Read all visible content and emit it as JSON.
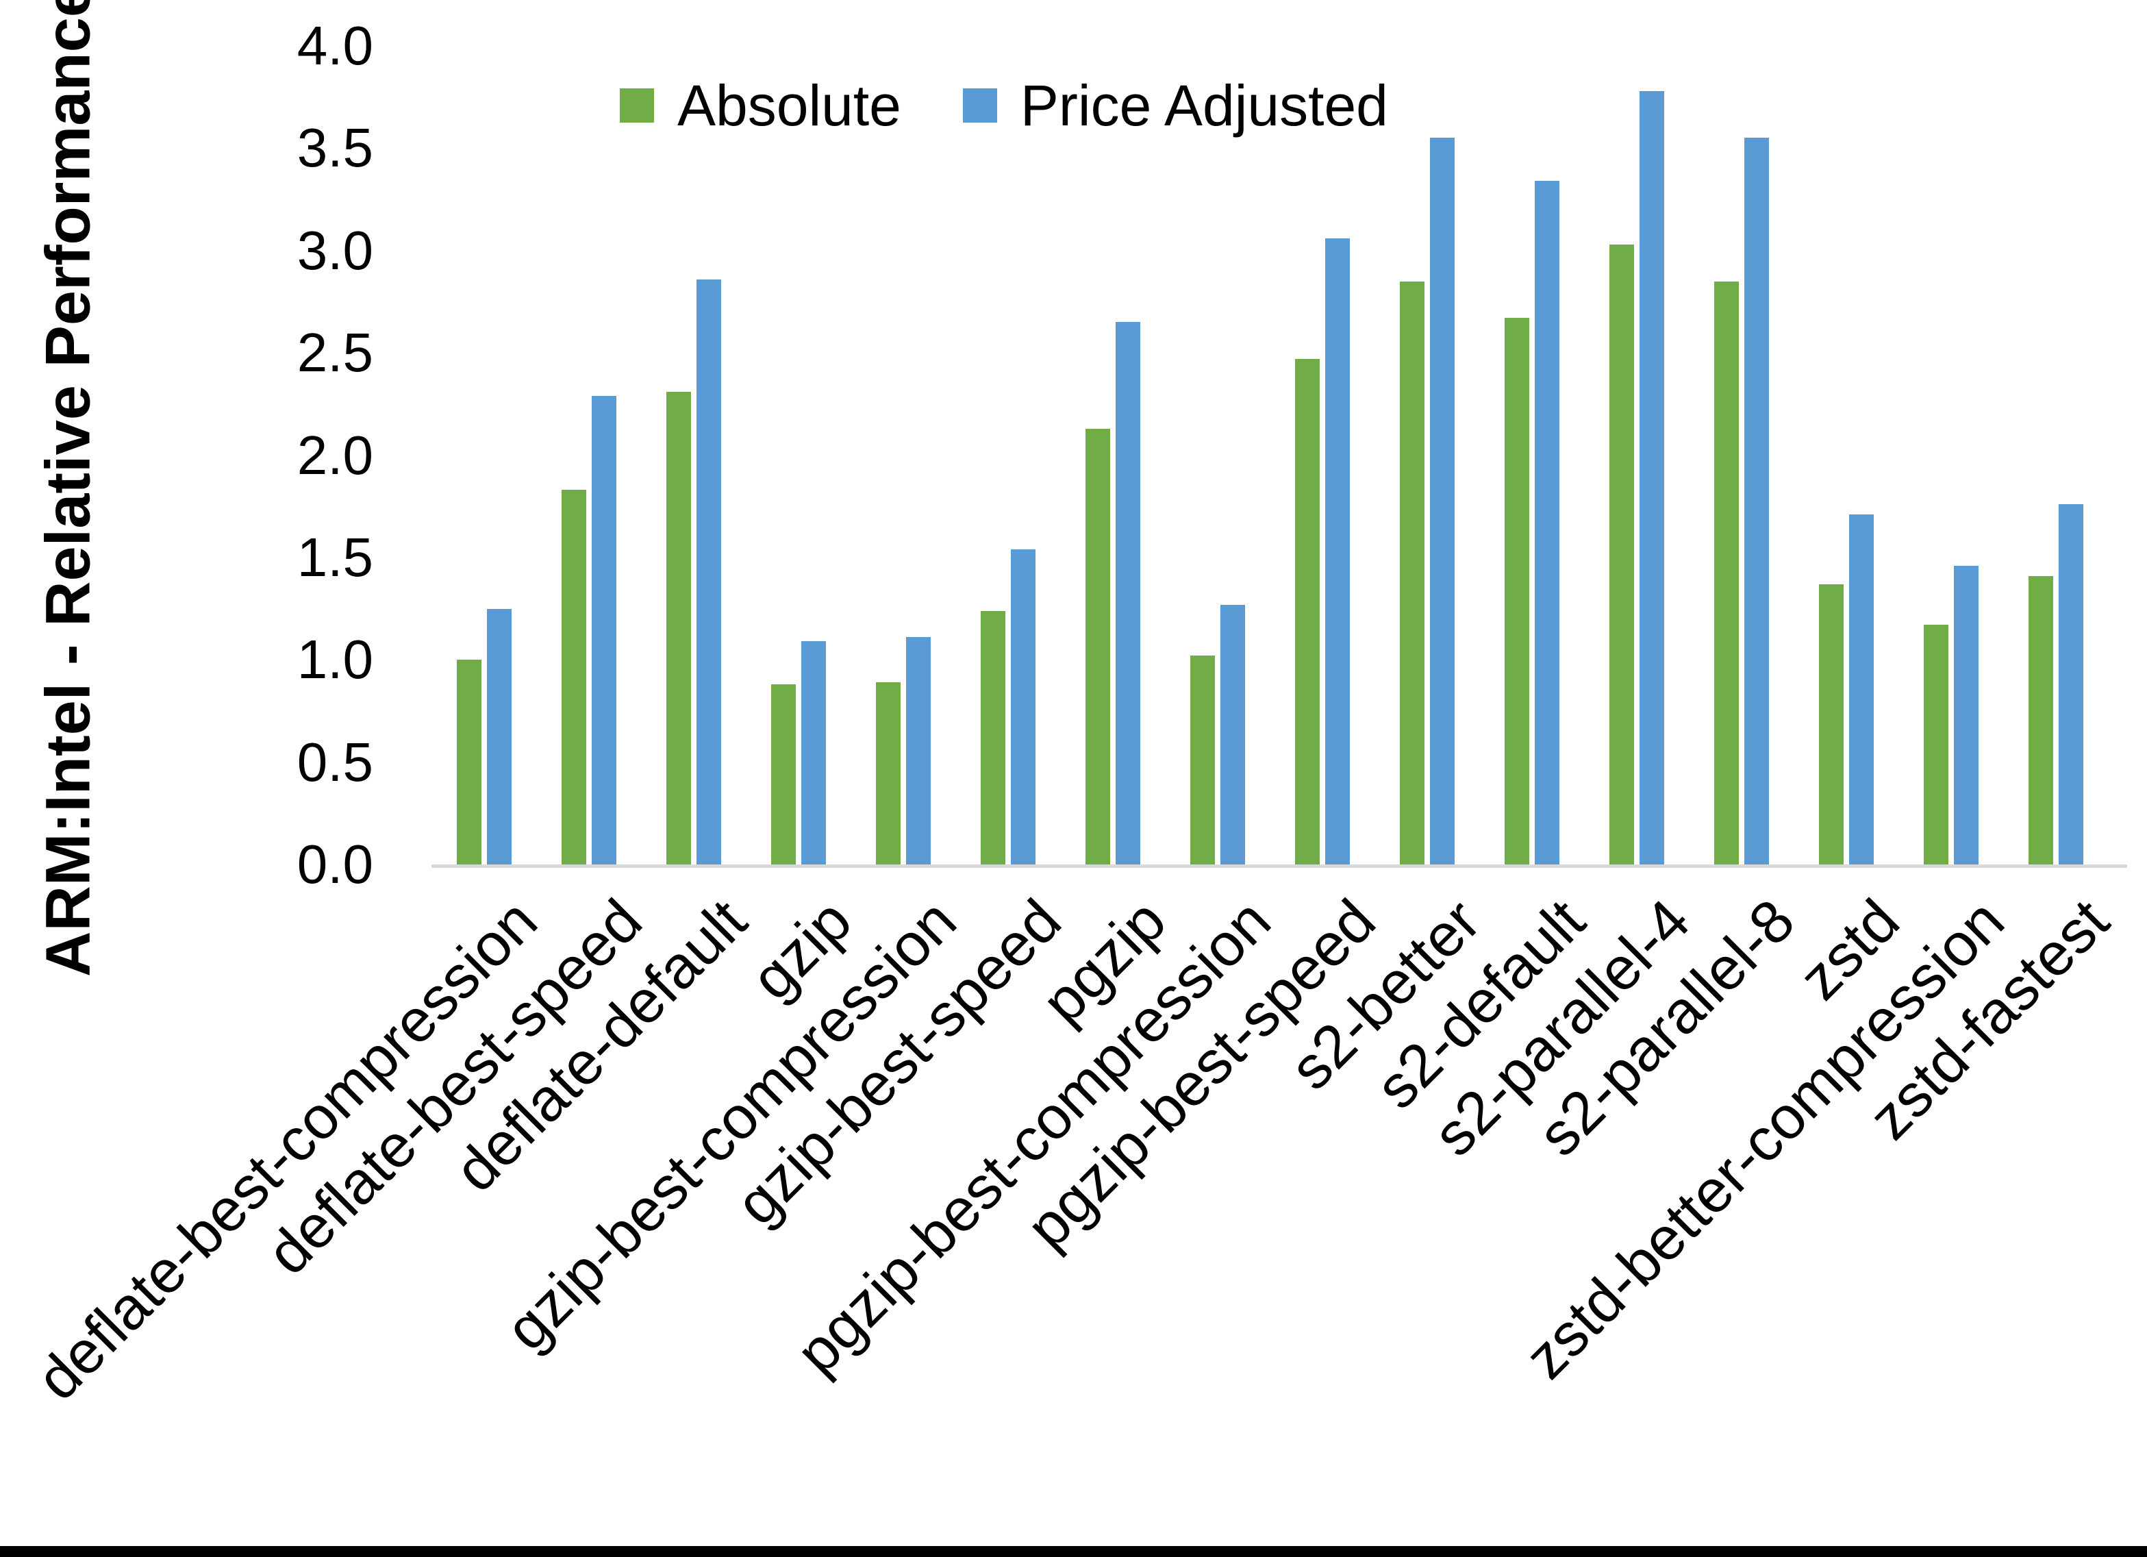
{
  "chart_data": {
    "type": "bar",
    "title": "",
    "ylabel": "ARM:Intel - Relative Performance",
    "xlabel": "",
    "ylim": [
      0.0,
      4.0
    ],
    "ytick_step": 0.5,
    "ytick_labels": [
      "0.0",
      "0.5",
      "1.0",
      "1.5",
      "2.0",
      "2.5",
      "3.0",
      "3.5",
      "4.0"
    ],
    "grid": false,
    "legend_position": "top-center",
    "categories": [
      "deflate-best-compression",
      "deflate-best-speed",
      "deflate-default",
      "gzip",
      "gzip-best-compression",
      "gzip-best-speed",
      "pgzip",
      "pgzip-best-compression",
      "pgzip-best-speed",
      "s2-better",
      "s2-default",
      "s2-parallel-4",
      "s2-parallel-8",
      "zstd",
      "zstd-better-compression",
      "zstd-fastest"
    ],
    "series": [
      {
        "name": "Absolute",
        "color": "#70AD47",
        "values": [
          1.0,
          1.83,
          2.31,
          0.88,
          0.89,
          1.24,
          2.13,
          1.02,
          2.47,
          2.85,
          2.67,
          3.03,
          2.85,
          1.37,
          1.17,
          1.41
        ]
      },
      {
        "name": "Price Adjusted",
        "color": "#5B9BD5",
        "values": [
          1.25,
          2.29,
          2.86,
          1.09,
          1.11,
          1.54,
          2.65,
          1.27,
          3.06,
          3.55,
          3.34,
          3.78,
          3.55,
          1.71,
          1.46,
          1.76
        ]
      }
    ]
  },
  "colors": {
    "background": "#FFFFFF",
    "axis_line": "#D9D9D9",
    "text": "#000000",
    "bottom_border": "#000000"
  }
}
